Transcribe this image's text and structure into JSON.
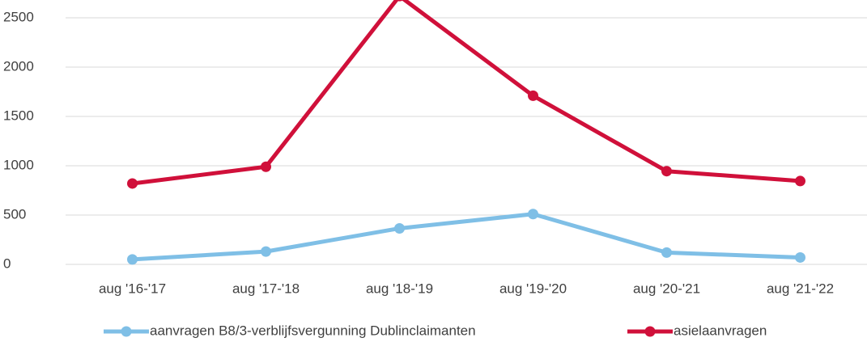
{
  "chart_data": {
    "type": "line",
    "categories": [
      "aug '16-'17",
      "aug '17-'18",
      "aug '18-'19",
      "aug '19-'20",
      "aug '20-'21",
      "aug '21-'22"
    ],
    "series": [
      {
        "name": "aanvragen B8/3-verblijfsvergunning Dublinclaimanten",
        "color": "#7fbfe6",
        "values": [
          50,
          130,
          365,
          510,
          120,
          70
        ]
      },
      {
        "name": "asielaanvragen",
        "color": "#d0103a",
        "values": [
          820,
          990,
          2720,
          1710,
          945,
          845
        ]
      }
    ],
    "ylim": [
      0,
      2500
    ],
    "yticks": [
      0,
      500,
      1000,
      1500,
      2000,
      2500
    ],
    "grid": true,
    "legend": "bottom"
  }
}
